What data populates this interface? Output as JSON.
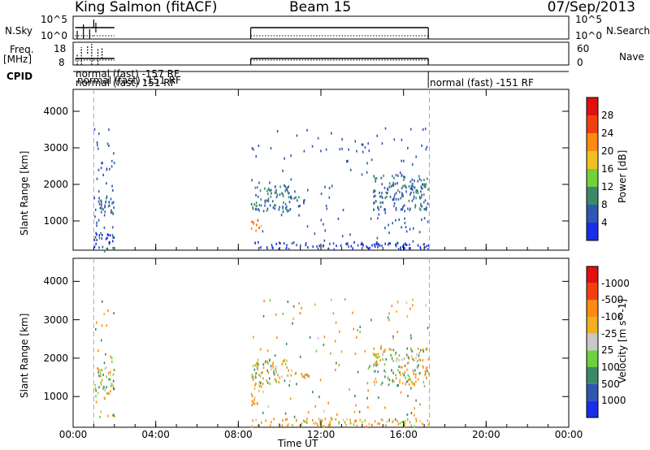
{
  "header": {
    "station": "King Salmon (fitACF)",
    "beam": "Beam 15",
    "date": "07/Sep/2013"
  },
  "left_labels": {
    "nsky": "N.Sky",
    "freq_line1": "Freq.",
    "freq_line2": "[MHz]",
    "cpid": "CPID"
  },
  "right_labels": {
    "nsearch": "N.Search",
    "nave": "Nave"
  },
  "cpid_text": {
    "overlap1": "normal (fast) -151 RF",
    "overlap2": "normal (fast) -157 RF",
    "overlap3": "normal (fast) 151 RF",
    "late": "normal (fast) -151 RF"
  },
  "axes": {
    "time_label": "Time UT",
    "time_ticks": [
      "00:00",
      "04:00",
      "08:00",
      "12:00",
      "16:00",
      "20:00",
      "00:00"
    ],
    "range_label": "Slant Range [km]",
    "range_ticks": [
      "1000",
      "2000",
      "3000",
      "4000"
    ],
    "noise_ticks_left": [
      "10^5",
      "10^0"
    ],
    "noise_ticks_right": [
      "10^5",
      "10^0"
    ],
    "freq_ticks_left": [
      "18",
      "8"
    ],
    "nave_ticks_right": [
      "60",
      "0"
    ]
  },
  "colorbars": {
    "power": {
      "label": "Power [dB]",
      "ticks": [
        "4",
        "8",
        "12",
        "16",
        "20",
        "24",
        "28"
      ],
      "colors": [
        "#1a2ee8",
        "#2f56b0",
        "#3a8a6a",
        "#72d13a",
        "#f0c020",
        "#ff8a10",
        "#f04010",
        "#e01010"
      ]
    },
    "velocity": {
      "label": "Velocity [m s^-1]",
      "ticks": [
        "1000",
        "500",
        "100",
        "25",
        "-25",
        "-100",
        "-500",
        "-1000"
      ],
      "colors": [
        "#1a2ee8",
        "#2f56b0",
        "#3a8a6a",
        "#6cd040",
        "#c8c8c8",
        "#f0b020",
        "#ff8a10",
        "#f04010",
        "#e01010"
      ]
    }
  },
  "chart_data": [
    {
      "type": "heatmap",
      "panel": "power",
      "xlabel": "Time UT",
      "ylabel": "Slant Range [km]",
      "xlim": [
        0,
        24
      ],
      "ylim": [
        200,
        4600
      ],
      "colorbar_label": "Power [dB]",
      "colorbar_range": [
        0,
        32
      ],
      "echo_regions": [
        {
          "t": [
            1.0,
            2.0
          ],
          "r": [
            1200,
            1700
          ],
          "value": 6
        },
        {
          "t": [
            1.0,
            2.0
          ],
          "r": [
            200,
            700
          ],
          "value": 5
        },
        {
          "t": [
            8.6,
            9.1
          ],
          "r": [
            700,
            1100
          ],
          "value": 22
        },
        {
          "t": [
            8.6,
            10.5
          ],
          "r": [
            1300,
            2000
          ],
          "value": 8
        },
        {
          "t": [
            10.5,
            11.5
          ],
          "r": [
            1500,
            1700
          ],
          "value": 6
        },
        {
          "t": [
            8.6,
            17.2
          ],
          "r": [
            250,
            450
          ],
          "value": 4
        },
        {
          "t": [
            14.5,
            17.2
          ],
          "r": [
            1300,
            2300
          ],
          "value": 8
        }
      ]
    },
    {
      "type": "heatmap",
      "panel": "velocity",
      "xlabel": "Time UT",
      "ylabel": "Slant Range [km]",
      "xlim": [
        0,
        24
      ],
      "ylim": [
        200,
        4600
      ],
      "colorbar_label": "Velocity [m s^-1]",
      "colorbar_ticks": [
        1000,
        500,
        100,
        25,
        -25,
        -100,
        -500,
        -1000
      ],
      "echo_regions": [
        {
          "t": [
            1.0,
            2.0
          ],
          "r": [
            1100,
            1800
          ],
          "value": 0
        },
        {
          "t": [
            8.6,
            9.2
          ],
          "r": [
            800,
            1300
          ],
          "value": -150
        },
        {
          "t": [
            8.6,
            10.5
          ],
          "r": [
            1300,
            2000
          ],
          "value": 0
        },
        {
          "t": [
            10.5,
            11.5
          ],
          "r": [
            1500,
            1700
          ],
          "value": -200
        },
        {
          "t": [
            8.6,
            17.2
          ],
          "r": [
            250,
            450
          ],
          "value": -100
        },
        {
          "t": [
            14.5,
            17.2
          ],
          "r": [
            1300,
            2300
          ],
          "value": 0
        }
      ]
    }
  ]
}
